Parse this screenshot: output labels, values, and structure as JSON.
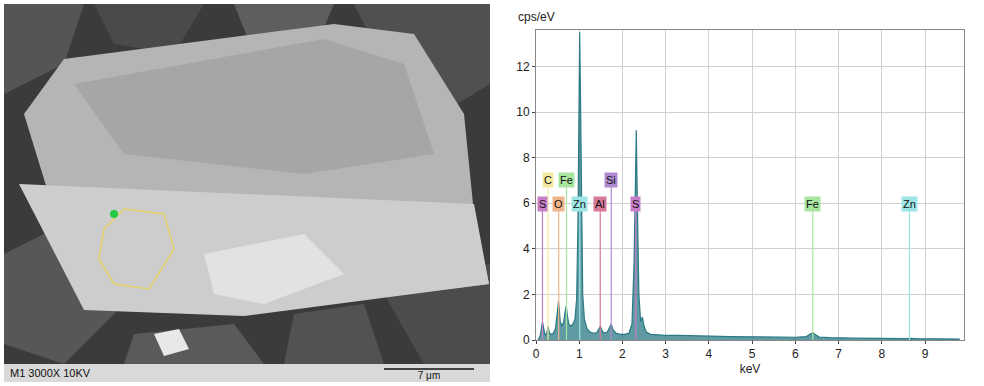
{
  "micrograph": {
    "info_bar": "M1 3000X 10KV",
    "scale_bar": "7 μm"
  },
  "chart_data": {
    "type": "line",
    "xlabel": "keV",
    "ylabel": "cps/eV",
    "x": [
      0.05,
      0.1,
      0.15,
      0.18,
      0.21,
      0.25,
      0.28,
      0.31,
      0.35,
      0.4,
      0.45,
      0.48,
      0.5,
      0.52,
      0.54,
      0.56,
      0.6,
      0.64,
      0.67,
      0.7,
      0.73,
      0.76,
      0.8,
      0.85,
      0.9,
      0.94,
      0.97,
      0.99,
      1.01,
      1.03,
      1.05,
      1.08,
      1.12,
      1.18,
      1.25,
      1.32,
      1.4,
      1.45,
      1.49,
      1.53,
      1.58,
      1.65,
      1.7,
      1.74,
      1.78,
      1.85,
      1.95,
      2.05,
      2.15,
      2.22,
      2.27,
      2.3,
      2.32,
      2.34,
      2.38,
      2.42,
      2.46,
      2.5,
      2.55,
      2.65,
      2.8,
      3.0,
      3.3,
      3.6,
      4.0,
      4.5,
      5.0,
      5.5,
      6.0,
      6.25,
      6.35,
      6.4,
      6.45,
      6.55,
      6.8,
      7.0,
      7.06,
      7.12,
      7.3,
      7.6,
      8.0,
      8.4,
      8.55,
      8.63,
      8.7,
      8.9,
      9.3,
      9.8
    ],
    "values": [
      0,
      0.2,
      0.8,
      0.5,
      0.2,
      0.3,
      0.6,
      0.3,
      0.25,
      0.3,
      0.5,
      1.0,
      1.5,
      1.7,
      1.3,
      0.8,
      0.6,
      0.8,
      1.2,
      1.5,
      1.0,
      0.7,
      0.6,
      0.7,
      0.9,
      1.8,
      5.0,
      11.0,
      13.5,
      10.5,
      5.5,
      2.0,
      0.9,
      0.5,
      0.35,
      0.3,
      0.3,
      0.45,
      0.6,
      0.4,
      0.3,
      0.35,
      0.55,
      0.7,
      0.45,
      0.3,
      0.25,
      0.25,
      0.3,
      0.7,
      3.5,
      8.5,
      9.2,
      6.5,
      2.0,
      0.8,
      1.0,
      0.6,
      0.35,
      0.25,
      0.22,
      0.2,
      0.2,
      0.18,
      0.17,
      0.15,
      0.14,
      0.13,
      0.12,
      0.15,
      0.25,
      0.32,
      0.25,
      0.13,
      0.1,
      0.1,
      0.12,
      0.09,
      0.08,
      0.07,
      0.06,
      0.06,
      0.06,
      0.07,
      0.06,
      0.05,
      0.05,
      0.04
    ],
    "color": "#2b7a85",
    "xlim": [
      0,
      9.9
    ],
    "xticks": [
      0,
      1,
      2,
      3,
      4,
      5,
      6,
      7,
      8,
      9
    ],
    "ylim": [
      0,
      13.6
    ],
    "yticks": [
      0,
      2,
      4,
      6,
      8,
      10,
      12
    ],
    "grid": true,
    "annotations": [
      {
        "text": "S",
        "x": 0.149,
        "color": "#c77dc7"
      },
      {
        "text": "C",
        "x": 0.277,
        "color": "#f3e9a0"
      },
      {
        "text": "O",
        "x": 0.525,
        "color": "#f0b48a"
      },
      {
        "text": "Fe",
        "x": 0.705,
        "color": "#a8e6a0"
      },
      {
        "text": "Zn",
        "x": 1.012,
        "color": "#9ee6e6"
      },
      {
        "text": "Al",
        "x": 1.486,
        "color": "#d77a96"
      },
      {
        "text": "Si",
        "x": 1.74,
        "color": "#b08ad0"
      },
      {
        "text": "S",
        "x": 2.307,
        "color": "#c77dc7"
      },
      {
        "text": "Fe",
        "x": 6.403,
        "color": "#a8e6a0"
      },
      {
        "text": "Zn",
        "x": 8.637,
        "color": "#9ee6e6"
      }
    ]
  }
}
